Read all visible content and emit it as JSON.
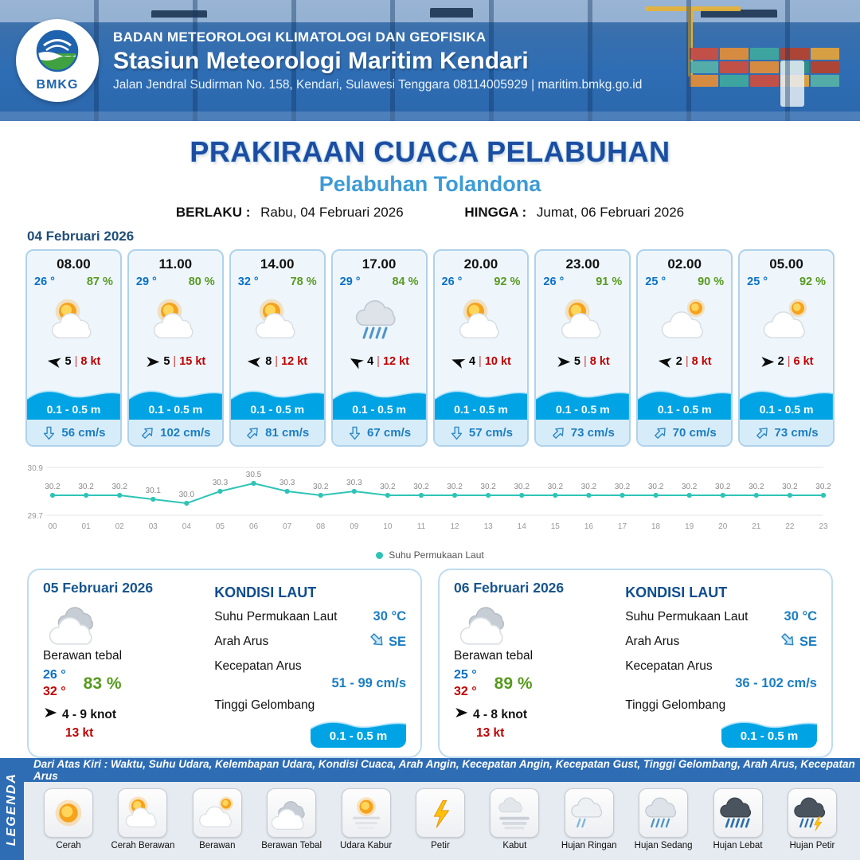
{
  "header": {
    "logo_label": "BMKG",
    "agency": "BADAN METEOROLOGI KLIMATOLOGI DAN GEOFISIKA",
    "station": "Stasiun Meteorologi Maritim Kendari",
    "address": "Jalan Jendral Sudirman No. 158, Kendari, Sulawesi Tenggara  08114005929 | maritim.bmkg.go.id"
  },
  "title": {
    "main": "PRAKIRAAN CUACA PELABUHAN",
    "port": "Pelabuhan Tolandona",
    "berlaku_label": "BERLAKU :",
    "berlaku_value": "Rabu, 04 Februari 2026",
    "hingga_label": "HINGGA :",
    "hingga_value": "Jumat, 06 Februari 2026"
  },
  "day1": {
    "date": "04 Februari 2026",
    "hours": [
      {
        "time": "08.00",
        "temp": "26 °",
        "humidity": "87 %",
        "icon": "cerah-berawan",
        "wind": "5",
        "gust": "8 kt",
        "wind_rot": 190,
        "wave": "0.1 - 0.5 m",
        "current": "56 cm/s",
        "current_rot": 0
      },
      {
        "time": "11.00",
        "temp": "29 °",
        "humidity": "80 %",
        "icon": "cerah-berawan",
        "wind": "5",
        "gust": "15 kt",
        "wind_rot": 0,
        "wave": "0.1 - 0.5 m",
        "current": "102 cm/s",
        "current_rot": 225
      },
      {
        "time": "14.00",
        "temp": "32 °",
        "humidity": "78 %",
        "icon": "cerah-berawan",
        "wind": "8",
        "gust": "12 kt",
        "wind_rot": 185,
        "wave": "0.1 - 0.5 m",
        "current": "81 cm/s",
        "current_rot": 225
      },
      {
        "time": "17.00",
        "temp": "29 °",
        "humidity": "84 %",
        "icon": "hujan-sedang",
        "wind": "4",
        "gust": "12 kt",
        "wind_rot": 210,
        "wave": "0.1 - 0.5 m",
        "current": "67 cm/s",
        "current_rot": 0
      },
      {
        "time": "20.00",
        "temp": "26 °",
        "humidity": "92 %",
        "icon": "cerah-berawan",
        "wind": "4",
        "gust": "10 kt",
        "wind_rot": 200,
        "wave": "0.1 - 0.5 m",
        "current": "57 cm/s",
        "current_rot": 0
      },
      {
        "time": "23.00",
        "temp": "26 °",
        "humidity": "91 %",
        "icon": "cerah-berawan",
        "wind": "5",
        "gust": "8 kt",
        "wind_rot": 0,
        "wave": "0.1 - 0.5 m",
        "current": "73 cm/s",
        "current_rot": 225
      },
      {
        "time": "02.00",
        "temp": "25 °",
        "humidity": "90 %",
        "icon": "berawan",
        "wind": "2",
        "gust": "8 kt",
        "wind_rot": 190,
        "wave": "0.1 - 0.5 m",
        "current": "70 cm/s",
        "current_rot": 225
      },
      {
        "time": "05.00",
        "temp": "25 °",
        "humidity": "92 %",
        "icon": "berawan",
        "wind": "2",
        "gust": "6 kt",
        "wind_rot": 0,
        "wave": "0.1 - 0.5 m",
        "current": "73 cm/s",
        "current_rot": 225
      }
    ]
  },
  "chart_data": {
    "type": "line",
    "title": "Suhu Permukaan Laut",
    "x": [
      "00",
      "01",
      "02",
      "03",
      "04",
      "05",
      "06",
      "07",
      "08",
      "09",
      "10",
      "11",
      "12",
      "13",
      "14",
      "15",
      "16",
      "17",
      "18",
      "19",
      "20",
      "21",
      "22",
      "23"
    ],
    "series": [
      {
        "name": "Suhu Permukaan Laut",
        "values": [
          30.2,
          30.2,
          30.2,
          30.1,
          30.0,
          30.3,
          30.5,
          30.3,
          30.2,
          30.3,
          30.2,
          30.2,
          30.2,
          30.2,
          30.2,
          30.2,
          30.2,
          30.2,
          30.2,
          30.2,
          30.2,
          30.2,
          30.2,
          30.2
        ]
      }
    ],
    "ylim": [
      29.7,
      30.9
    ],
    "line_color": "#2EC4B6",
    "grid": true,
    "legend_position": "bottom"
  },
  "days": [
    {
      "date": "05 Februari 2026",
      "icon": "berawan-tebal",
      "condition": "Berawan tebal",
      "temp_min": "26 °",
      "temp_max": "32 °",
      "humidity": "83 %",
      "wind": "4  - 9 knot",
      "wind_rot": 0,
      "gust": "13 kt",
      "sea_title": "KONDISI LAUT",
      "sst_label": "Suhu Permukaan Laut",
      "sst": "30 °C",
      "current_dir_label": "Arah Arus",
      "current_dir": "SE",
      "current_rot": 315,
      "current_speed_label": "Kecepatan Arus",
      "current_speed": "51 - 99 cm/s",
      "wave_label": "Tinggi Gelombang",
      "wave": "0.1 - 0.5 m"
    },
    {
      "date": "06 Februari 2026",
      "icon": "berawan-tebal",
      "condition": "Berawan tebal",
      "temp_min": "25 °",
      "temp_max": "32 °",
      "humidity": "89 %",
      "wind": "4  - 8 knot",
      "wind_rot": 0,
      "gust": "13 kt",
      "sea_title": "KONDISI LAUT",
      "sst_label": "Suhu Permukaan Laut",
      "sst": "30 °C",
      "current_dir_label": "Arah Arus",
      "current_dir": "SE",
      "current_rot": 315,
      "current_speed_label": "Kecepatan Arus",
      "current_speed": "36  - 102 cm/s",
      "wave_label": "Tinggi Gelombang",
      "wave": "0.1 - 0.5 m"
    }
  ],
  "legend": {
    "title": "LEGENDA",
    "description": "Dari Atas Kiri : Waktu, Suhu Udara, Kelembapan Udara, Kondisi Cuaca, Arah Angin, Kecepatan Angin, Kecepatan Gust, Tinggi Gelombang, Arah Arus, Kecepatan Arus",
    "items": [
      {
        "label": "Cerah",
        "icon": "cerah"
      },
      {
        "label": "Cerah Berawan",
        "icon": "cerah-berawan"
      },
      {
        "label": "Berawan",
        "icon": "berawan"
      },
      {
        "label": "Berawan Tebal",
        "icon": "berawan-tebal"
      },
      {
        "label": "Udara Kabur",
        "icon": "udara-kabur"
      },
      {
        "label": "Petir",
        "icon": "petir"
      },
      {
        "label": "Kabut",
        "icon": "kabut"
      },
      {
        "label": "Hujan Ringan",
        "icon": "hujan-ringan"
      },
      {
        "label": "Hujan Sedang",
        "icon": "hujan-sedang"
      },
      {
        "label": "Hujan Lebat",
        "icon": "hujan-lebat"
      },
      {
        "label": "Hujan Petir",
        "icon": "hujan-petir"
      }
    ]
  },
  "colors": {
    "header_blue": "#2E6DB4",
    "title_blue": "#1C4DA1",
    "port_blue": "#3D9BD6",
    "temp_blue": "#0A70C7",
    "humidity_green": "#579A1E",
    "gust_red": "#C00000",
    "wave_blue": "#00A4E4",
    "current_blue": "#1B7EC2",
    "chart_teal": "#2EC4B6"
  }
}
